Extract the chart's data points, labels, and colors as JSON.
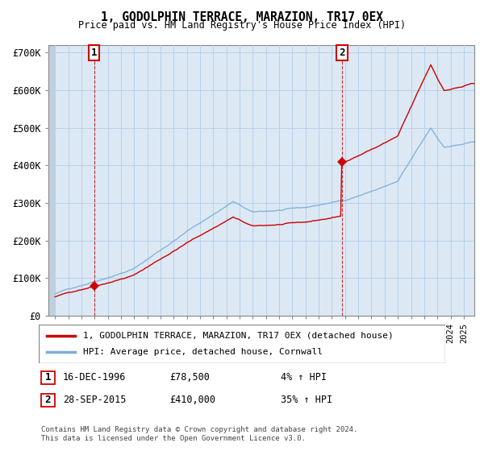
{
  "title": "1, GODOLPHIN TERRACE, MARAZION, TR17 0EX",
  "subtitle": "Price paid vs. HM Land Registry's House Price Index (HPI)",
  "ylabel_ticks": [
    "£0",
    "£100K",
    "£200K",
    "£300K",
    "£400K",
    "£500K",
    "£600K",
    "£700K"
  ],
  "ylim": [
    0,
    720000
  ],
  "ytick_vals": [
    0,
    100000,
    200000,
    300000,
    400000,
    500000,
    600000,
    700000
  ],
  "sale1_date": 1996.958,
  "sale1_price": 78500,
  "sale2_date": 2015.748,
  "sale2_price": 410000,
  "property_line_color": "#cc0000",
  "hpi_line_color": "#7bafd4",
  "chart_bg_color": "#dce9f5",
  "hatch_color": "#c0cfe0",
  "grid_color": "#b8cfe8",
  "annotation1_text": "1",
  "annotation2_text": "2",
  "legend_property": "1, GODOLPHIN TERRACE, MARAZION, TR17 0EX (detached house)",
  "legend_hpi": "HPI: Average price, detached house, Cornwall",
  "note1_label": "1",
  "note1_date": "16-DEC-1996",
  "note1_price": "£78,500",
  "note1_hpi": "4% ↑ HPI",
  "note2_label": "2",
  "note2_date": "28-SEP-2015",
  "note2_price": "£410,000",
  "note2_hpi": "35% ↑ HPI",
  "footer": "Contains HM Land Registry data © Crown copyright and database right 2024.\nThis data is licensed under the Open Government Licence v3.0.",
  "xmin": 1993.5,
  "xmax": 2025.8
}
